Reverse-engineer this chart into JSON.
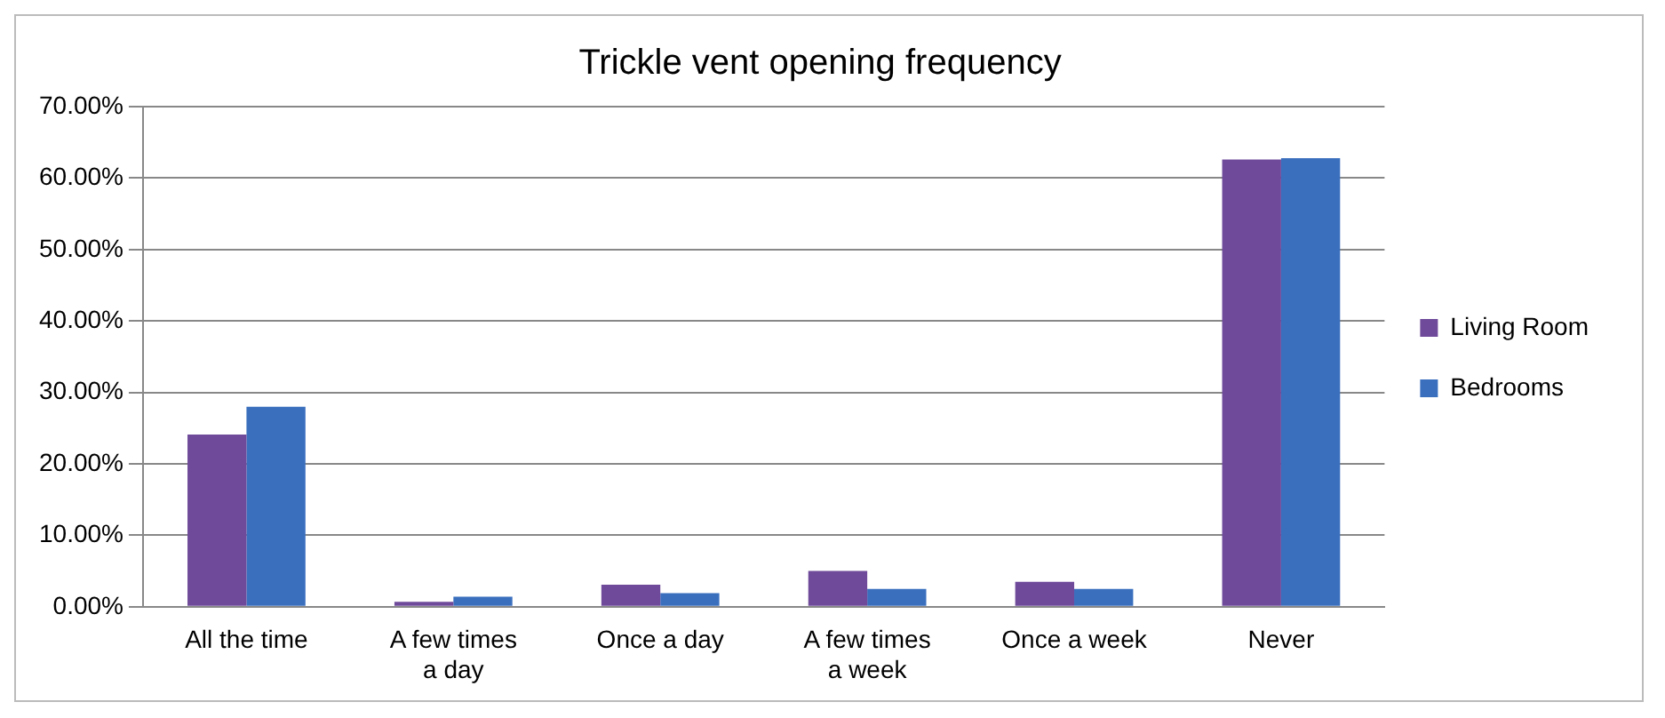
{
  "chart_data": {
    "type": "bar",
    "title": "Trickle vent opening frequency",
    "categories": [
      "All the time",
      "A few times a day",
      "Once a day",
      "A few times a week",
      "Once a week",
      "Never"
    ],
    "series": [
      {
        "name": "Living Room",
        "color": "#6f4a9a",
        "values": [
          24.1,
          0.7,
          3.1,
          5.0,
          3.5,
          62.6
        ]
      },
      {
        "name": "Bedrooms",
        "color": "#3a6fbe",
        "values": [
          28.0,
          1.4,
          1.9,
          2.5,
          2.5,
          62.8
        ]
      }
    ],
    "ylim": [
      0,
      70
    ],
    "yticks": [
      {
        "value": 0,
        "label": "0.00%"
      },
      {
        "value": 10,
        "label": "10.00%"
      },
      {
        "value": 20,
        "label": "20.00%"
      },
      {
        "value": 30,
        "label": "30.00%"
      },
      {
        "value": 40,
        "label": "40.00%"
      },
      {
        "value": 50,
        "label": "50.00%"
      },
      {
        "value": 60,
        "label": "60.00%"
      },
      {
        "value": 70,
        "label": "70.00%"
      }
    ],
    "grid": "y",
    "legend": "right"
  }
}
